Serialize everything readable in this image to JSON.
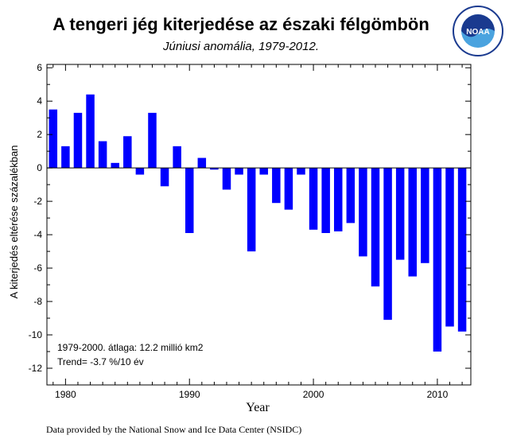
{
  "title": "A tengeri jég kiterjedése az északi félgömbön",
  "subtitle": "Júniusi anomália, 1979-2012.",
  "logo": {
    "text": "NOAA",
    "icon": "noaa-logo"
  },
  "credit": "Data provided by the National Snow and Ice Data Center (NSIDC)",
  "colors": {
    "bar": "#0000ff",
    "axis": "#000000",
    "logo_blue": "#1a3a8f",
    "logo_light": "#4aa3df"
  },
  "chart_data": {
    "type": "bar",
    "xlabel": "Year",
    "ylabel": "A kiterjedés eltérése százalékban",
    "xlim": [
      1978.5,
      2012.7
    ],
    "ylim": [
      -13,
      6.2
    ],
    "xticks": [
      1980,
      1990,
      2000,
      2010
    ],
    "yticks": [
      -12,
      -10,
      -8,
      -6,
      -4,
      -2,
      0,
      2,
      4,
      6
    ],
    "grid": false,
    "notes": [
      "1979-2000. átlaga: 12.2 millió km2",
      "Trend=  -3.7 %/10 év"
    ],
    "categories": [
      1979,
      1980,
      1981,
      1982,
      1983,
      1984,
      1985,
      1986,
      1987,
      1988,
      1989,
      1990,
      1991,
      1992,
      1993,
      1994,
      1995,
      1996,
      1997,
      1998,
      1999,
      2000,
      2001,
      2002,
      2003,
      2004,
      2005,
      2006,
      2007,
      2008,
      2009,
      2010,
      2011,
      2012
    ],
    "values": [
      3.5,
      1.3,
      3.3,
      4.4,
      1.6,
      0.3,
      1.9,
      -0.4,
      3.3,
      -1.1,
      1.3,
      -3.9,
      0.6,
      -0.1,
      -1.3,
      -0.4,
      -5.0,
      -0.4,
      -2.1,
      -2.5,
      -0.4,
      -3.7,
      -3.9,
      -3.8,
      -3.3,
      -5.3,
      -7.1,
      -9.1,
      -5.5,
      -6.5,
      -5.7,
      -11.0,
      -9.5,
      -9.8
    ]
  }
}
